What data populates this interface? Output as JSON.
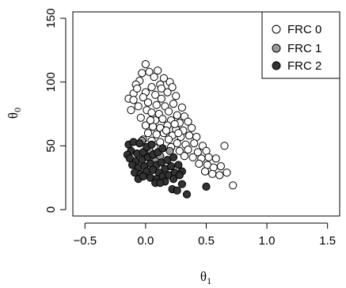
{
  "chart_data": {
    "type": "scatter",
    "title": "",
    "xlabel": "θ",
    "xlabel_sub": "1",
    "ylabel": "θ",
    "ylabel_sub": "0",
    "xlim": [
      -0.6,
      1.6
    ],
    "ylim": [
      -5,
      155
    ],
    "xticks": [
      -0.5,
      0.0,
      0.5,
      1.0,
      1.5
    ],
    "xtick_labels": [
      "−0.5",
      "0.0",
      "0.5",
      "1.0",
      "1.5"
    ],
    "yticks": [
      0,
      50,
      100,
      150
    ],
    "ytick_labels": [
      "0",
      "50",
      "100",
      "150"
    ],
    "grid": false,
    "legend_position": "top-right",
    "series": [
      {
        "name": "FRC 0",
        "color": "#ffffff",
        "points": [
          [
            0.0,
            114
          ],
          [
            -0.03,
            107
          ],
          [
            0.03,
            108
          ],
          [
            0.07,
            104
          ],
          [
            0.1,
            109
          ],
          [
            -0.05,
            101
          ],
          [
            0.12,
            98
          ],
          [
            0.15,
            103
          ],
          [
            0.2,
            100
          ],
          [
            -0.08,
            98
          ],
          [
            -0.1,
            91
          ],
          [
            0.05,
            96
          ],
          [
            0.0,
            92
          ],
          [
            0.08,
            90
          ],
          [
            -0.14,
            87
          ],
          [
            -0.1,
            86
          ],
          [
            -0.02,
            88
          ],
          [
            0.18,
            92
          ],
          [
            0.22,
            96
          ],
          [
            0.25,
            89
          ],
          [
            0.13,
            87
          ],
          [
            0.02,
            84
          ],
          [
            -0.06,
            81
          ],
          [
            0.09,
            82
          ],
          [
            0.16,
            81
          ],
          [
            0.23,
            83
          ],
          [
            0.3,
            80
          ],
          [
            -0.12,
            78
          ],
          [
            0.01,
            78
          ],
          [
            0.05,
            76
          ],
          [
            0.11,
            75
          ],
          [
            0.19,
            77
          ],
          [
            0.26,
            74
          ],
          [
            0.32,
            73
          ],
          [
            -0.04,
            72
          ],
          [
            0.08,
            70
          ],
          [
            0.14,
            71
          ],
          [
            0.21,
            70
          ],
          [
            0.28,
            68
          ],
          [
            0.35,
            69
          ],
          [
            0.0,
            66
          ],
          [
            0.06,
            65
          ],
          [
            0.12,
            64
          ],
          [
            0.18,
            66
          ],
          [
            0.25,
            63
          ],
          [
            0.31,
            62
          ],
          [
            0.38,
            64
          ],
          [
            0.02,
            60
          ],
          [
            0.09,
            59
          ],
          [
            0.15,
            60
          ],
          [
            0.22,
            58
          ],
          [
            0.29,
            57
          ],
          [
            0.36,
            58
          ],
          [
            0.42,
            57
          ],
          [
            -0.02,
            55
          ],
          [
            0.05,
            54
          ],
          [
            0.12,
            53
          ],
          [
            0.19,
            55
          ],
          [
            0.26,
            52
          ],
          [
            0.33,
            51
          ],
          [
            0.4,
            52
          ],
          [
            0.47,
            50
          ],
          [
            0.07,
            49
          ],
          [
            0.14,
            48
          ],
          [
            0.21,
            49
          ],
          [
            0.28,
            46
          ],
          [
            0.35,
            47
          ],
          [
            0.43,
            45
          ],
          [
            0.5,
            46
          ],
          [
            0.32,
            42
          ],
          [
            0.39,
            41
          ],
          [
            0.46,
            40
          ],
          [
            0.52,
            41
          ],
          [
            0.58,
            40
          ],
          [
            0.44,
            36
          ],
          [
            0.51,
            35
          ],
          [
            0.56,
            33
          ],
          [
            0.62,
            34
          ],
          [
            0.49,
            30
          ],
          [
            0.55,
            28
          ],
          [
            0.61,
            27
          ],
          [
            0.65,
            50
          ],
          [
            0.67,
            29
          ],
          [
            0.72,
            19
          ],
          [
            0.27,
            60
          ],
          [
            0.17,
            62
          ],
          [
            0.04,
            70
          ],
          [
            0.24,
            67
          ],
          [
            -0.07,
            95
          ],
          [
            0.13,
            95
          ]
        ]
      },
      {
        "name": "FRC 1",
        "color": "#999999",
        "points": [
          [
            -0.03,
            54
          ],
          [
            0.03,
            47
          ],
          [
            0.2,
            46
          ],
          [
            0.12,
            42
          ],
          [
            0.08,
            38
          ],
          [
            -0.01,
            44
          ]
        ]
      },
      {
        "name": "FRC 2",
        "color": "#333333",
        "points": [
          [
            -0.14,
            51
          ],
          [
            -0.1,
            53
          ],
          [
            -0.05,
            52
          ],
          [
            -0.12,
            46
          ],
          [
            -0.07,
            44
          ],
          [
            -0.02,
            45
          ],
          [
            0.01,
            49
          ],
          [
            0.05,
            51
          ],
          [
            -0.15,
            43
          ],
          [
            -0.13,
            40
          ],
          [
            -0.08,
            38
          ],
          [
            -0.03,
            39
          ],
          [
            0.02,
            41
          ],
          [
            0.06,
            43
          ],
          [
            0.1,
            45
          ],
          [
            0.14,
            48
          ],
          [
            -0.11,
            35
          ],
          [
            -0.06,
            33
          ],
          [
            -0.01,
            34
          ],
          [
            0.04,
            36
          ],
          [
            0.09,
            35
          ],
          [
            0.13,
            37
          ],
          [
            0.18,
            39
          ],
          [
            0.23,
            41
          ],
          [
            -0.09,
            29
          ],
          [
            -0.04,
            28
          ],
          [
            0.01,
            30
          ],
          [
            0.06,
            31
          ],
          [
            0.11,
            29
          ],
          [
            0.16,
            32
          ],
          [
            0.21,
            34
          ],
          [
            0.27,
            35
          ],
          [
            -0.06,
            24
          ],
          [
            0.04,
            25
          ],
          [
            0.09,
            24
          ],
          [
            0.14,
            26
          ],
          [
            0.19,
            27
          ],
          [
            0.24,
            29
          ],
          [
            0.3,
            30
          ],
          [
            0.08,
            21
          ],
          [
            0.16,
            22
          ],
          [
            0.23,
            24
          ],
          [
            0.3,
            20
          ],
          [
            0.22,
            16
          ],
          [
            0.26,
            15
          ],
          [
            0.34,
            12
          ],
          [
            0.5,
            18
          ],
          [
            0.12,
            21
          ],
          [
            0.28,
            27
          ],
          [
            -0.02,
            26
          ]
        ]
      }
    ]
  }
}
